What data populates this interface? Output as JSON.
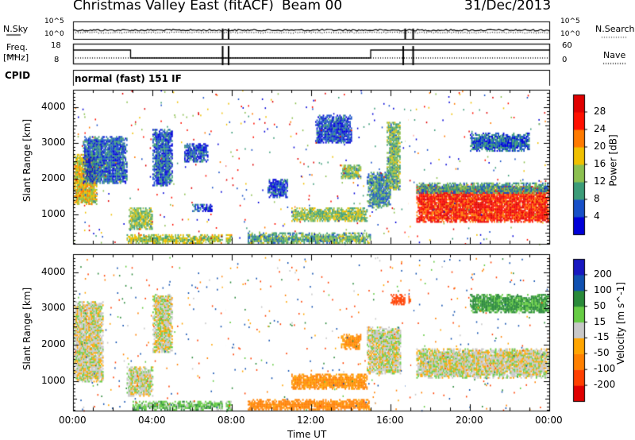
{
  "header": {
    "station": "Christmas Valley East (fitACF)",
    "beam": "Beam 00",
    "date": "31/Dec/2013"
  },
  "noise_panel": {
    "left_label": "N.Sky",
    "right_label": "N.Search",
    "tick_top": "10^5",
    "tick_bottom": "10^0"
  },
  "freq_panel": {
    "left_label_1": "Freq.",
    "left_label_2": "[MHz]",
    "ticks": [
      "18",
      "8"
    ],
    "right_label": "Nave",
    "right_ticks": [
      "60",
      "0"
    ]
  },
  "cpid": {
    "label": "CPID",
    "value": "normal (fast) 151 IF"
  },
  "chart_data": [
    {
      "type": "heatmap",
      "title": "",
      "xlabel": "Time UT",
      "ylabel": "Slant Range [km]",
      "x_ticks": [
        "00:00",
        "04:00",
        "08:00",
        "12:00",
        "16:00",
        "20:00",
        "00:00"
      ],
      "y_ticks": [
        "1000",
        "2000",
        "3000",
        "4000"
      ],
      "xlim_hours": [
        0,
        24
      ],
      "ylim_km": [
        180,
        4500
      ],
      "colorbar": {
        "label": "Power [dB]",
        "ticks": [
          "4",
          "8",
          "12",
          "16",
          "20",
          "24",
          "28"
        ],
        "range": [
          0,
          30
        ],
        "colors": [
          "#0000d8",
          "#1850c8",
          "#3c9c78",
          "#8cc050",
          "#f0c000",
          "#ff7a00",
          "#ff1000",
          "#e00000"
        ]
      },
      "regions": [
        {
          "start_h": 0.0,
          "end_h": 1.2,
          "from_km": 1300,
          "to_km": 2700,
          "value": 16
        },
        {
          "start_h": 0.5,
          "end_h": 2.7,
          "from_km": 1900,
          "to_km": 3200,
          "value": 6
        },
        {
          "start_h": 2.8,
          "end_h": 4.0,
          "from_km": 600,
          "to_km": 1200,
          "value": 13
        },
        {
          "start_h": 2.7,
          "end_h": 8.0,
          "from_km": 200,
          "to_km": 450,
          "value": 14
        },
        {
          "start_h": 4.0,
          "end_h": 5.0,
          "from_km": 1800,
          "to_km": 3400,
          "value": 6
        },
        {
          "start_h": 5.6,
          "end_h": 6.8,
          "from_km": 2500,
          "to_km": 3000,
          "value": 5
        },
        {
          "start_h": 6.0,
          "end_h": 7.0,
          "from_km": 1100,
          "to_km": 1300,
          "value": 5
        },
        {
          "start_h": 8.8,
          "end_h": 15.0,
          "from_km": 200,
          "to_km": 500,
          "value": 11
        },
        {
          "start_h": 9.8,
          "end_h": 10.8,
          "from_km": 1500,
          "to_km": 2000,
          "value": 4
        },
        {
          "start_h": 11.0,
          "end_h": 14.8,
          "from_km": 800,
          "to_km": 1200,
          "value": 13
        },
        {
          "start_h": 12.2,
          "end_h": 14.0,
          "from_km": 3000,
          "to_km": 3800,
          "value": 5
        },
        {
          "start_h": 13.5,
          "end_h": 14.5,
          "from_km": 2000,
          "to_km": 2400,
          "value": 12
        },
        {
          "start_h": 14.8,
          "end_h": 16.0,
          "from_km": 1200,
          "to_km": 2200,
          "value": 9
        },
        {
          "start_h": 15.8,
          "end_h": 16.5,
          "from_km": 1700,
          "to_km": 3600,
          "value": 12
        },
        {
          "start_h": 17.3,
          "end_h": 24.0,
          "from_km": 800,
          "to_km": 1800,
          "value": 25
        },
        {
          "start_h": 17.3,
          "end_h": 24.0,
          "from_km": 1600,
          "to_km": 1900,
          "value": 10
        },
        {
          "start_h": 20.0,
          "end_h": 23.0,
          "from_km": 2800,
          "to_km": 3300,
          "value": 6
        }
      ]
    },
    {
      "type": "heatmap",
      "title": "",
      "xlabel": "Time UT",
      "ylabel": "Slant Range [km]",
      "x_ticks": [
        "00:00",
        "04:00",
        "08:00",
        "12:00",
        "16:00",
        "20:00",
        "00:00"
      ],
      "y_ticks": [
        "1000",
        "2000",
        "3000",
        "4000"
      ],
      "xlim_hours": [
        0,
        24
      ],
      "ylim_km": [
        180,
        4500
      ],
      "colorbar": {
        "label": "Velocity [m s^-1]",
        "ticks": [
          "200",
          "100",
          "50",
          "15",
          "-15",
          "-50",
          "-100",
          "-200"
        ],
        "range": [
          -250,
          250
        ],
        "colors": [
          "#e00000",
          "#ff4000",
          "#ff8000",
          "#ffa500",
          "#c8c8c8",
          "#66cc44",
          "#2a8a3a",
          "#1050b0",
          "#1818c0"
        ]
      },
      "regions": [
        {
          "start_h": 0.0,
          "end_h": 1.5,
          "from_km": 1000,
          "to_km": 3200,
          "value": 0
        },
        {
          "start_h": 2.7,
          "end_h": 4.0,
          "from_km": 600,
          "to_km": 1400,
          "value": 0
        },
        {
          "start_h": 3.0,
          "end_h": 8.0,
          "from_km": 200,
          "to_km": 450,
          "value": 35
        },
        {
          "start_h": 4.0,
          "end_h": 5.0,
          "from_km": 1800,
          "to_km": 3400,
          "value": 0
        },
        {
          "start_h": 8.8,
          "end_h": 15.0,
          "from_km": 200,
          "to_km": 500,
          "value": -70
        },
        {
          "start_h": 11.0,
          "end_h": 14.8,
          "from_km": 800,
          "to_km": 1200,
          "value": -60
        },
        {
          "start_h": 13.5,
          "end_h": 14.5,
          "from_km": 1900,
          "to_km": 2300,
          "value": -60
        },
        {
          "start_h": 14.8,
          "end_h": 16.5,
          "from_km": 1200,
          "to_km": 2500,
          "value": 0
        },
        {
          "start_h": 16.0,
          "end_h": 17.0,
          "from_km": 3100,
          "to_km": 3400,
          "value": -150
        },
        {
          "start_h": 17.3,
          "end_h": 24.0,
          "from_km": 1100,
          "to_km": 1900,
          "value": 0
        },
        {
          "start_h": 20.0,
          "end_h": 24.0,
          "from_km": 2900,
          "to_km": 3400,
          "value": 60
        }
      ]
    }
  ]
}
